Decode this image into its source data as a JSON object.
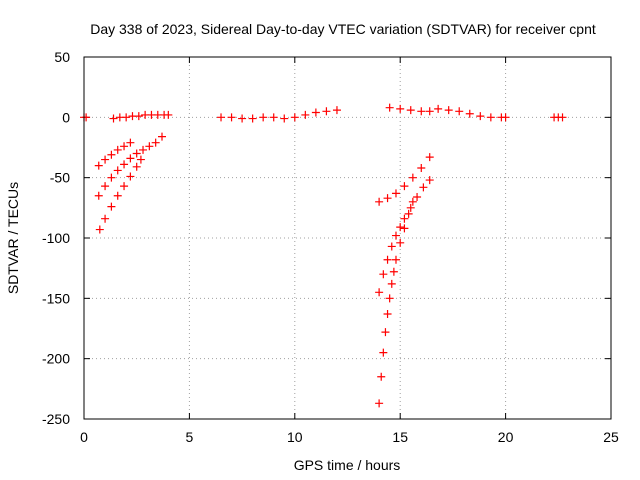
{
  "chart_data": {
    "type": "scatter",
    "title": "Day 338 of 2023, Sidereal Day-to-day VTEC variation (SDTVAR) for receiver cpnt",
    "xlabel": "GPS time / hours",
    "ylabel": "SDTVAR / TECUs",
    "xlim": [
      0,
      25
    ],
    "ylim": [
      -250,
      50
    ],
    "xticks": [
      0,
      5,
      10,
      15,
      20,
      25
    ],
    "yticks": [
      50,
      0,
      -50,
      -100,
      -150,
      -200,
      -250
    ],
    "grid": true,
    "marker": "plus",
    "color": "#ff0000",
    "series": [
      {
        "x": [
          0.0,
          0.1
        ],
        "y": [
          0,
          0
        ]
      },
      {
        "x": [
          1.4,
          1.7,
          2.0,
          2.3,
          2.6,
          2.9,
          3.2,
          3.5,
          3.8,
          4.0
        ],
        "y": [
          -1,
          0,
          0,
          1,
          1,
          2,
          2,
          2,
          2,
          2
        ]
      },
      {
        "x": [
          0.7,
          1.0,
          1.3,
          1.6,
          1.9,
          2.2
        ],
        "y": [
          -40,
          -35,
          -31,
          -27,
          -24,
          -21
        ]
      },
      {
        "x": [
          0.7,
          1.0,
          1.3,
          1.6,
          1.9,
          2.2,
          2.5,
          2.8,
          3.1,
          3.4,
          3.7
        ],
        "y": [
          -65,
          -57,
          -50,
          -44,
          -39,
          -34,
          -30,
          -27,
          -24,
          -21,
          -16
        ]
      },
      {
        "x": [
          0.75,
          1.0,
          1.3,
          1.6,
          1.9,
          2.2,
          2.5,
          2.7
        ],
        "y": [
          -93,
          -84,
          -74,
          -65,
          -57,
          -49,
          -41,
          -35
        ]
      },
      {
        "x": [
          6.5,
          7.0,
          7.5,
          8.0,
          8.5,
          9.0,
          9.5,
          10.0,
          10.5,
          11.0,
          11.5,
          12.0
        ],
        "y": [
          0,
          0,
          -1,
          -1,
          0,
          0,
          -1,
          0,
          2,
          4,
          5,
          6
        ]
      },
      {
        "x": [
          14.5,
          15.0,
          15.5,
          16.0,
          16.4
        ],
        "y": [
          8,
          7,
          6,
          5,
          5
        ]
      },
      {
        "x": [
          16.8,
          17.3,
          17.8,
          18.3,
          18.8,
          19.3,
          19.8,
          20.0
        ],
        "y": [
          7,
          6,
          5,
          3,
          1,
          0,
          0,
          0
        ]
      },
      {
        "x": [
          22.3,
          22.5,
          22.7
        ],
        "y": [
          0,
          0,
          0
        ]
      },
      {
        "x": [
          14.0,
          14.4,
          14.8,
          15.2,
          15.6,
          16.0,
          16.4
        ],
        "y": [
          -70,
          -67,
          -63,
          -57,
          -50,
          -42,
          -33
        ]
      },
      {
        "x": [
          14.0,
          14.2,
          14.4,
          14.6,
          14.8,
          15.0,
          15.2,
          15.5,
          15.8,
          16.1,
          16.4
        ],
        "y": [
          -145,
          -130,
          -118,
          -107,
          -98,
          -91,
          -84,
          -75,
          -66,
          -58,
          -52
        ]
      },
      {
        "x": [
          14.0,
          14.1,
          14.2,
          14.3,
          14.4,
          14.5,
          14.6,
          14.7,
          14.8,
          15.0,
          15.2,
          15.4,
          15.6
        ],
        "y": [
          -237,
          -215,
          -195,
          -178,
          -163,
          -150,
          -138,
          -128,
          -118,
          -104,
          -92,
          -80,
          -70
        ]
      }
    ]
  }
}
